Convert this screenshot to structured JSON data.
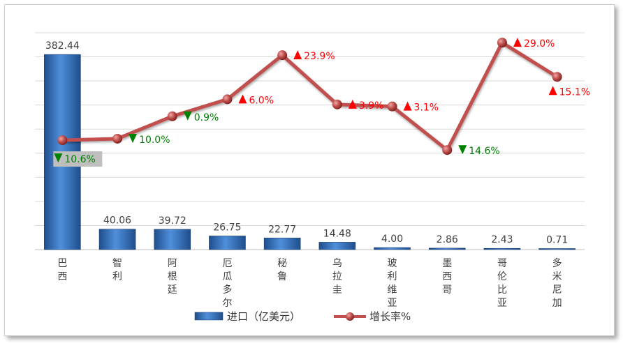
{
  "chart_data": {
    "type": "bar+line",
    "categories": [
      "巴西",
      "智利",
      "阿根廷",
      "厄瓜多尔",
      "秘鲁",
      "乌拉圭",
      "玻利维亚",
      "墨西哥",
      "哥伦比亚",
      "多米尼加"
    ],
    "series": [
      {
        "name": "进口（亿美元）",
        "type": "bar",
        "values": [
          382.44,
          40.06,
          39.72,
          26.75,
          22.77,
          14.48,
          4.0,
          2.86,
          2.43,
          0.71
        ],
        "labels": [
          "382.44",
          "40.06",
          "39.72",
          "26.75",
          "22.77",
          "14.48",
          "4.00",
          "2.86",
          "2.43",
          "0.71"
        ],
        "color": "#2E62A8"
      },
      {
        "name": "增长率%",
        "type": "line",
        "values": [
          -10.6,
          -10.0,
          -0.9,
          6.0,
          23.9,
          3.9,
          3.1,
          -14.6,
          29.0,
          15.1
        ],
        "labels": [
          "10.6%",
          "10.0%",
          "0.9%",
          "6.0%",
          "23.9%",
          "3.9%",
          "3.1%",
          "14.6%",
          "29.0%",
          "15.1%"
        ],
        "directions": [
          "down",
          "down",
          "down",
          "up",
          "up",
          "up",
          "up",
          "down",
          "up",
          "up"
        ],
        "color": "#C0504D"
      }
    ],
    "colors": {
      "up": "#FF0000",
      "down": "#008000",
      "grid": "#D9D9D9"
    },
    "grid": true,
    "legend_position": "bottom"
  },
  "legend": {
    "bar_label": "进口（亿美元）",
    "line_label": "增长率%"
  }
}
